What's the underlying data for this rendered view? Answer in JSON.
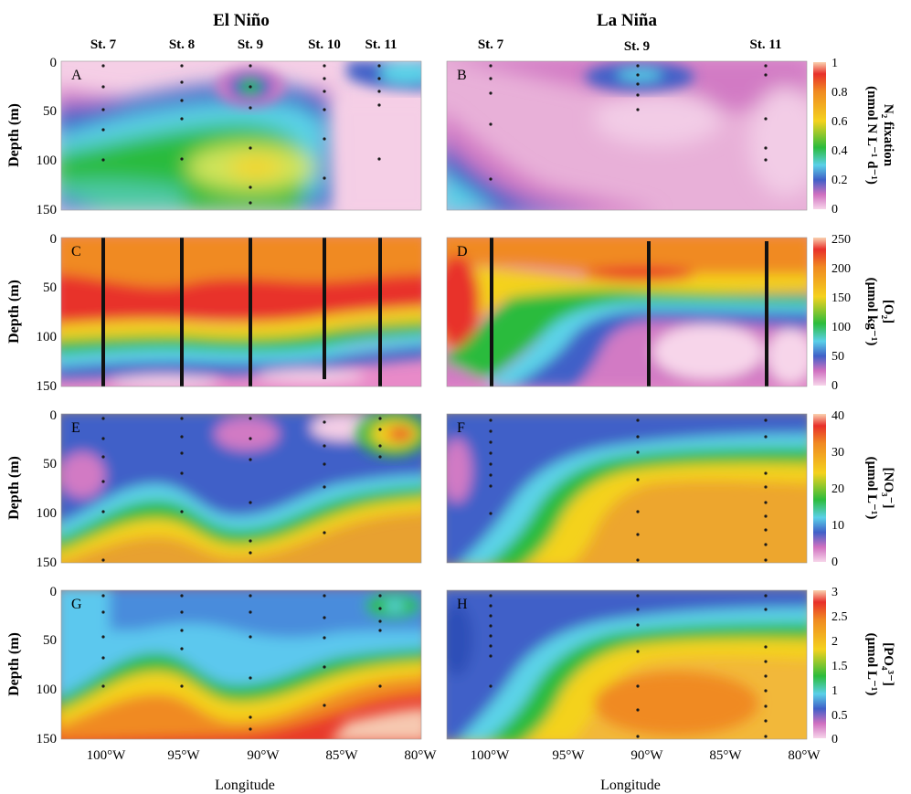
{
  "figure": {
    "regime_titles": [
      "El Niño",
      "La Niña"
    ],
    "xlabel": "Longitude",
    "ylabel": "Depth (m)",
    "depth_ticks": [
      "0",
      "50",
      "100",
      "150"
    ],
    "lon_ticks": [
      "100°W",
      "95°W",
      "90°W",
      "85°W",
      "80°W"
    ],
    "station_labels_left": [
      "St. 7",
      "St. 8",
      "St. 9",
      "St. 10",
      "St. 11"
    ],
    "station_labels_right": [
      "St. 7",
      "St. 9",
      "St. 11"
    ],
    "panel_letters": [
      "A",
      "B",
      "C",
      "D",
      "E",
      "F",
      "G",
      "H"
    ],
    "colorbars": [
      {
        "label_line1": "N₂ fixation",
        "label_line2": "(nmol N L⁻¹ d⁻¹)",
        "ticks": [
          "0",
          "0.2",
          "0.4",
          "0.6",
          "0.8",
          "1"
        ]
      },
      {
        "label_line1": "[O₂]",
        "label_line2": "(μmol kg⁻¹)",
        "ticks": [
          "0",
          "50",
          "100",
          "150",
          "200",
          "250"
        ]
      },
      {
        "label_line1": "[NO₃⁻]",
        "label_line2": "(μmol L⁻¹)",
        "ticks": [
          "0",
          "10",
          "20",
          "30",
          "40"
        ]
      },
      {
        "label_line1": "[PO₄³⁻]",
        "label_line2": "(μmol L⁻¹)",
        "ticks": [
          "0",
          "0.5",
          "1",
          "1.5",
          "2",
          "2.5",
          "3"
        ]
      }
    ],
    "colors": {
      "scale_low": "#f7d5ea",
      "scale_purple": "#d070c0",
      "scale_blue": "#4060c8",
      "scale_cyan": "#5ad0e8",
      "scale_green": "#2cbc3c",
      "scale_yellow": "#f4d21e",
      "scale_orange": "#f08a22",
      "scale_red": "#e8302a",
      "scale_high": "#fad2b0"
    }
  },
  "chart_data": [
    {
      "type": "heatmap",
      "panel": "A",
      "variable": "N₂ fixation",
      "regime": "El Niño",
      "units": "nmol N L⁻¹ d⁻¹",
      "xlim": [
        "102.5°W",
        "80°W"
      ],
      "ylim": [
        150,
        0
      ],
      "stations": [
        {
          "name": "St. 7",
          "lon_w": 100.0
        },
        {
          "name": "St. 8",
          "lon_w": 95.1
        },
        {
          "name": "St. 9",
          "lon_w": 90.7
        },
        {
          "name": "St. 10",
          "lon_w": 86.1
        },
        {
          "name": "St. 11",
          "lon_w": 82.5
        }
      ]
    },
    {
      "type": "heatmap",
      "panel": "B",
      "variable": "N₂ fixation",
      "regime": "La Niña",
      "units": "nmol N L⁻¹ d⁻¹",
      "xlim": [
        "102.5°W",
        "80°W"
      ],
      "ylim": [
        150,
        0
      ],
      "stations": [
        {
          "name": "St. 7",
          "lon_w": 100.0
        },
        {
          "name": "St. 9",
          "lon_w": 90.7
        },
        {
          "name": "St. 11",
          "lon_w": 82.5
        }
      ]
    },
    {
      "type": "heatmap",
      "panel": "C",
      "variable": "[O₂]",
      "regime": "El Niño",
      "units": "μmol kg⁻¹",
      "xlim": [
        "102.5°W",
        "80°W"
      ],
      "ylim": [
        150,
        0
      ]
    },
    {
      "type": "heatmap",
      "panel": "D",
      "variable": "[O₂]",
      "regime": "La Niña",
      "units": "μmol kg⁻¹",
      "xlim": [
        "102.5°W",
        "80°W"
      ],
      "ylim": [
        150,
        0
      ]
    },
    {
      "type": "heatmap",
      "panel": "E",
      "variable": "[NO₃⁻]",
      "regime": "El Niño",
      "units": "μmol L⁻¹",
      "xlim": [
        "102.5°W",
        "80°W"
      ],
      "ylim": [
        150,
        0
      ]
    },
    {
      "type": "heatmap",
      "panel": "F",
      "variable": "[NO₃⁻]",
      "regime": "La Niña",
      "units": "μmol L⁻¹",
      "xlim": [
        "102.5°W",
        "80°W"
      ],
      "ylim": [
        150,
        0
      ]
    },
    {
      "type": "heatmap",
      "panel": "G",
      "variable": "[PO₄³⁻]",
      "regime": "El Niño",
      "units": "μmol L⁻¹",
      "xlim": [
        "102.5°W",
        "80°W"
      ],
      "ylim": [
        150,
        0
      ]
    },
    {
      "type": "heatmap",
      "panel": "H",
      "variable": "[PO₄³⁻]",
      "regime": "La Niña",
      "units": "μmol L⁻¹",
      "xlim": [
        "102.5°W",
        "80°W"
      ],
      "ylim": [
        150,
        0
      ]
    }
  ]
}
